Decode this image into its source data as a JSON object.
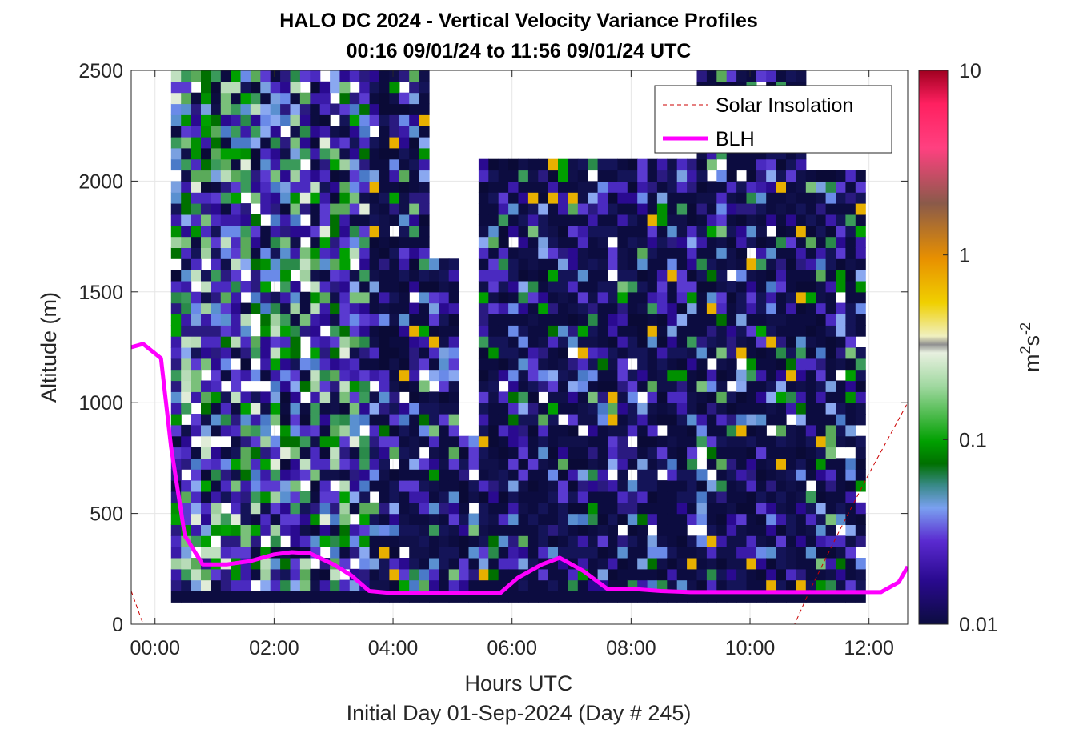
{
  "chart_data": {
    "type": "heatmap",
    "title": "HALO DC 2024 - Vertical Velocity Variance Profiles",
    "subtitle": "00:16 09/01/24 to 11:56 09/01/24  UTC",
    "xlabel": "Hours UTC",
    "xlabel2": "Initial Day 01-Sep-2024 (Day # 245)",
    "ylabel": "Altitude (m)",
    "xlim": [
      -0.4,
      12.65
    ],
    "ylim": [
      0,
      2500
    ],
    "x_ticks": [
      0,
      2,
      4,
      6,
      8,
      10,
      12
    ],
    "x_tick_labels": [
      "00:00",
      "02:00",
      "04:00",
      "06:00",
      "08:00",
      "10:00",
      "12:00"
    ],
    "y_ticks": [
      0,
      500,
      1000,
      1500,
      2000,
      2500
    ],
    "y_tick_labels": [
      "0",
      "500",
      "1000",
      "1500",
      "2000",
      "2500"
    ],
    "grid": true,
    "legend_position": "top-right",
    "colorbar": {
      "label_base": "m",
      "label_sup1": "2",
      "label_mid": "s",
      "label_sup2": "-2",
      "scale": "log",
      "range": [
        0.01,
        10
      ],
      "ticks": [
        0.01,
        0.1,
        1,
        10
      ],
      "tick_labels": [
        "0.01",
        "0.1",
        "1",
        "10"
      ]
    },
    "variance": {
      "time_start": 0.27,
      "time_end": 11.93,
      "time_step": 0.1667,
      "alt_start": 100,
      "alt_step": 50,
      "alt_max": 2500
    },
    "series": [
      {
        "name": "Solar Insolation",
        "style": "dashed",
        "color": "#cc0000",
        "x": [
          -0.4,
          -0.2,
          0.0,
          2.0,
          4.0,
          6.0,
          8.0,
          10.0,
          10.75,
          11.0,
          11.5,
          12.0,
          12.65
        ],
        "y": [
          150,
          0,
          0,
          0,
          0,
          0,
          0,
          0,
          0,
          150,
          420,
          680,
          1000
        ]
      },
      {
        "name": "BLH",
        "style": "solid",
        "color": "#ff00ff",
        "x": [
          -0.4,
          -0.2,
          0.1,
          0.27,
          0.5,
          0.8,
          1.2,
          1.6,
          2.0,
          2.3,
          2.6,
          3.0,
          3.3,
          3.6,
          4.0,
          5.0,
          5.5,
          5.8,
          6.1,
          6.5,
          6.8,
          7.2,
          7.6,
          8.0,
          8.5,
          9.0,
          10.0,
          11.0,
          11.5,
          12.0,
          12.2,
          12.5,
          12.65
        ],
        "y": [
          1250,
          1265,
          1200,
          800,
          400,
          270,
          270,
          285,
          315,
          325,
          320,
          270,
          220,
          150,
          140,
          140,
          140,
          140,
          210,
          270,
          300,
          240,
          160,
          160,
          150,
          145,
          145,
          145,
          145,
          145,
          145,
          190,
          260
        ]
      }
    ]
  },
  "colors": {
    "blh": "#ff00ff",
    "solar": "#cc0000",
    "dark_navy": "#0c0c40"
  }
}
